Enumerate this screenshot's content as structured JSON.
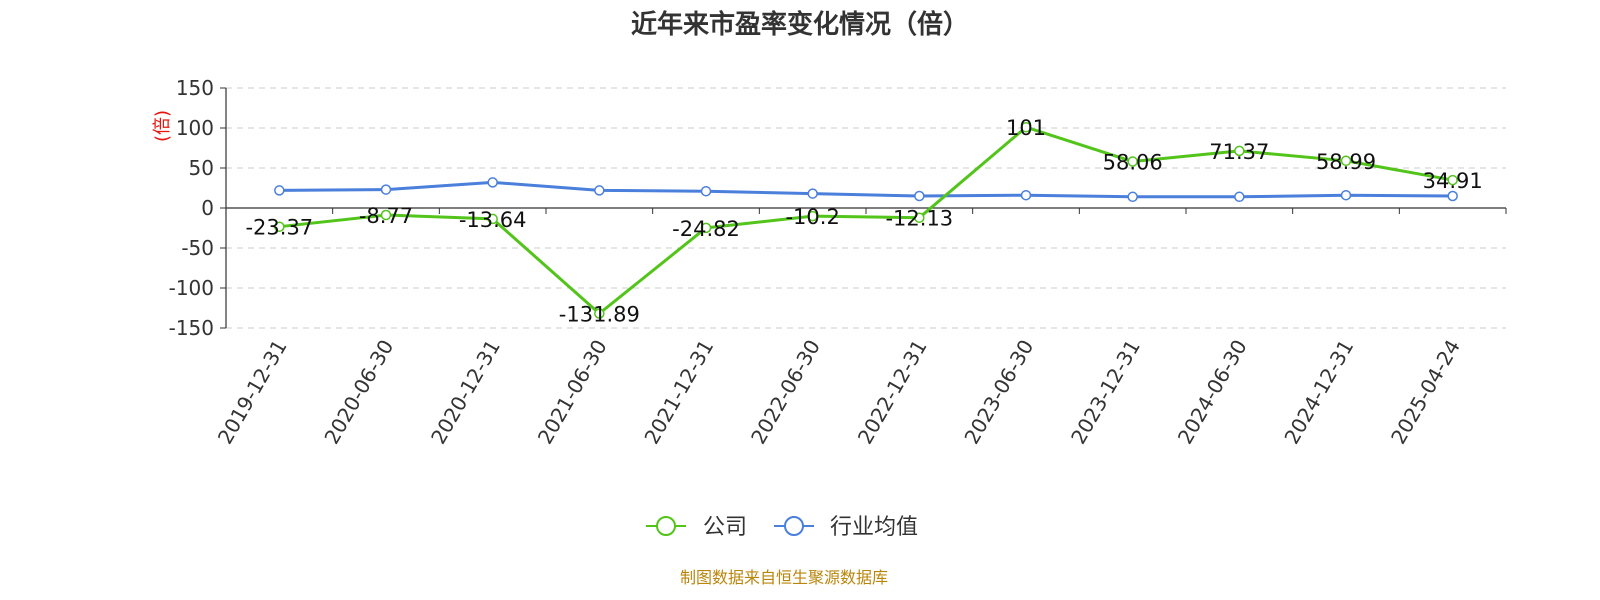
{
  "chart_data": {
    "type": "line",
    "title": "近年来市盈率变化情况（倍）",
    "ylabel": "(倍)",
    "ylim": [
      -150,
      150
    ],
    "yticks": [
      150,
      100,
      50,
      0,
      -50,
      -100,
      -150
    ],
    "grid": true,
    "legend_position": "bottom-center",
    "x": [
      "2019-12-31",
      "2020-06-30",
      "2020-12-31",
      "2021-06-30",
      "2021-12-31",
      "2022-06-30",
      "2022-12-31",
      "2023-06-30",
      "2023-12-31",
      "2024-06-30",
      "2024-12-31",
      "2025-04-24"
    ],
    "series": [
      {
        "name": "公司",
        "color": "#52c41a",
        "values": [
          -23.37,
          -8.77,
          -13.64,
          -131.89,
          -24.82,
          -10.2,
          -12.13,
          101,
          58.06,
          71.37,
          58.99,
          34.91
        ],
        "labels": [
          "-23.37",
          "-8.77",
          "-13.64",
          "-131.89",
          "-24.82",
          "-10.2",
          "-12.13",
          "101",
          "58.06",
          "71.37",
          "58.99",
          "34.91"
        ]
      },
      {
        "name": "行业均值",
        "color": "#4a7fdc",
        "values": [
          22,
          23,
          32,
          22,
          21,
          18,
          15,
          16,
          14,
          14,
          16,
          15
        ]
      }
    ]
  },
  "footer": {
    "source": "制图数据来自恒生聚源数据库"
  }
}
